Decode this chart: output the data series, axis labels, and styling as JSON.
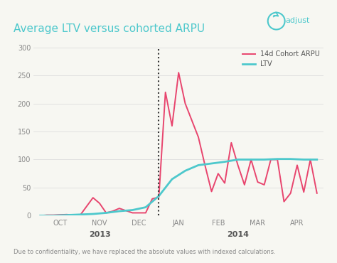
{
  "title": "Average LTV versus cohorted ARPU",
  "subtitle": "Due to confidentiality, we have replaced the absolute values with indexed calculations.",
  "background_color": "#f7f7f2",
  "title_color": "#4dc8cc",
  "title_fontsize": 11,
  "ylim": [
    0,
    300
  ],
  "yticks": [
    0,
    50,
    100,
    150,
    200,
    250,
    300
  ],
  "month_labels": [
    "OCT",
    "NOV",
    "DEC",
    "JAN",
    "FEB",
    "MAR",
    "APR"
  ],
  "year_labels": [
    "2013",
    "2014"
  ],
  "legend_labels": [
    "14d Cohort ARPU",
    "LTV"
  ],
  "arpu_color": "#e8456e",
  "ltv_color": "#4dc8cc",
  "dotted_line_x": 18,
  "arpu_x": [
    0,
    1,
    2,
    4,
    6,
    8,
    9,
    10,
    11,
    12,
    14,
    15,
    16,
    17,
    18,
    19,
    20,
    21,
    22,
    24,
    25,
    26,
    27,
    28,
    29,
    30,
    31,
    32,
    33,
    34,
    35,
    36,
    37,
    38,
    39,
    40,
    41,
    42
  ],
  "arpu_y": [
    0,
    1,
    1,
    2,
    0,
    32,
    22,
    5,
    8,
    13,
    5,
    5,
    5,
    30,
    33,
    220,
    160,
    255,
    200,
    140,
    90,
    43,
    75,
    58,
    130,
    90,
    55,
    100,
    60,
    55,
    100,
    100,
    25,
    40,
    90,
    42,
    100,
    40
  ],
  "ltv_x": [
    0,
    2,
    4,
    6,
    8,
    10,
    12,
    14,
    16,
    18,
    20,
    22,
    24,
    26,
    28,
    30,
    32,
    34,
    36,
    38,
    40,
    42
  ],
  "ltv_y": [
    0,
    0,
    1,
    2,
    3,
    5,
    8,
    10,
    15,
    35,
    65,
    80,
    90,
    93,
    96,
    100,
    100,
    100,
    101,
    101,
    100,
    100
  ]
}
